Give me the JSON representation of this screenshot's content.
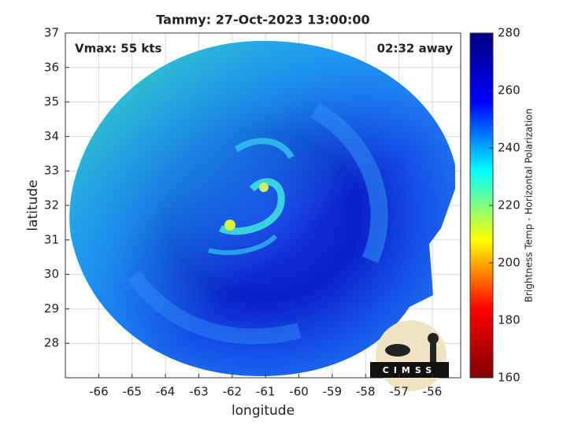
{
  "chart_data": {
    "type": "image",
    "title": "Tammy: 27-Oct-2023 13:00:00",
    "xlabel": "longitude",
    "ylabel": "latitude",
    "xlim": [
      -67,
      -55.15
    ],
    "ylim": [
      27,
      37
    ],
    "xticks": [
      -66,
      -65,
      -64,
      -63,
      -62,
      -61,
      -60,
      -59,
      -58,
      -57,
      -56
    ],
    "yticks": [
      28,
      29,
      30,
      31,
      32,
      33,
      34,
      35,
      36,
      37
    ],
    "grid": true,
    "annotations": [
      "Vmax: 55 kts",
      "02:32 away"
    ],
    "logo_text": "CIMSS",
    "colorbar": {
      "label": "Brightness Temp - Horizontal Polarization",
      "clim": [
        160,
        280
      ],
      "ticks": [
        160,
        180,
        200,
        220,
        240,
        260,
        280
      ],
      "colors": [
        "#800000",
        "#ff0000",
        "#ffff00",
        "#00ffff",
        "#0000ff",
        "#00007f"
      ]
    }
  }
}
